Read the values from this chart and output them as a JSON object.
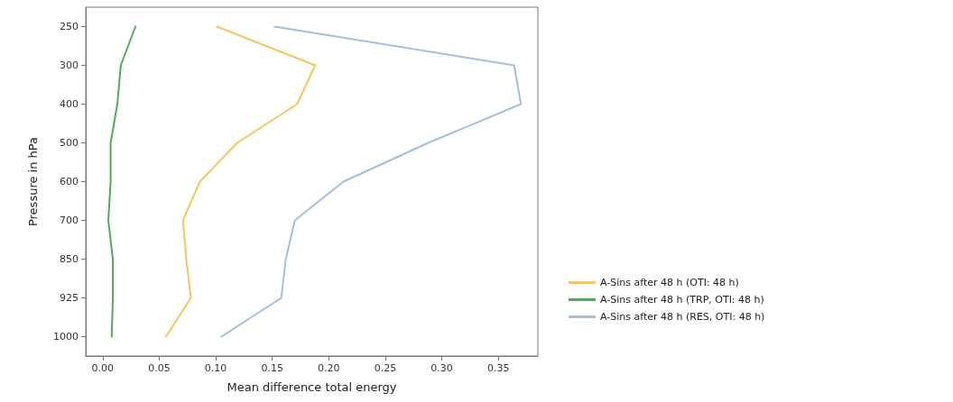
{
  "chart_data": {
    "type": "line",
    "xlabel": "Mean difference total energy",
    "ylabel": "Pressure in hPa",
    "orientation": "horizontal",
    "categories": [
      "250",
      "300",
      "400",
      "500",
      "600",
      "700",
      "850",
      "925",
      "1000"
    ],
    "xlim": [
      -0.015,
      0.385
    ],
    "xticks": [
      {
        "value": 0,
        "label": "0.00"
      },
      {
        "value": 0.05,
        "label": "0.05"
      },
      {
        "value": 0.1,
        "label": "0.10"
      },
      {
        "value": 0.15,
        "label": "0.15"
      },
      {
        "value": 0.2,
        "label": "0.20"
      },
      {
        "value": 0.25,
        "label": "0.25"
      },
      {
        "value": 0.3,
        "label": "0.30"
      },
      {
        "value": 0.35,
        "label": "0.35"
      }
    ],
    "series": [
      {
        "name": "A-Sins after 48 h (OTI: 48 h)",
        "color": "#fcc35a",
        "values": [
          0.101,
          0.188,
          0.172,
          0.119,
          0.086,
          0.071,
          0.074,
          0.078,
          0.056
        ]
      },
      {
        "name": "A-Sins after 48 h (TRP, OTI: 48 h)",
        "color": "#4fae55",
        "values": [
          0.029,
          0.016,
          0.013,
          0.007,
          0.007,
          0.005,
          0.009,
          0.009,
          0.008
        ]
      },
      {
        "name": "A-Sins after 48 h (RES, OTI: 48 h)",
        "color": "#a3bfdc",
        "values": [
          0.152,
          0.364,
          0.37,
          0.288,
          0.213,
          0.17,
          0.162,
          0.158,
          0.105
        ]
      }
    ],
    "legend": "right",
    "marker": "none",
    "line_style": "solid",
    "grid": false
  }
}
